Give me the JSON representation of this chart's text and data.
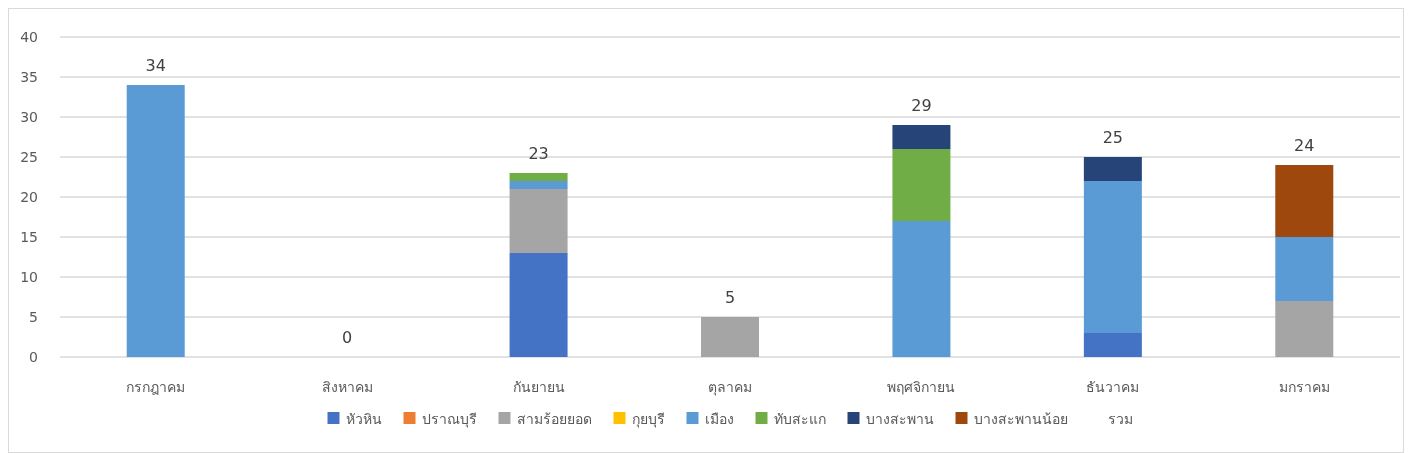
{
  "chart_data": {
    "type": "bar",
    "stacked": true,
    "categories": [
      "กรกฎาคม",
      "สิงหาคม",
      "กันยายน",
      "ตุลาคม",
      "พฤศจิกายน",
      "ธันวาคม",
      "มกราคม"
    ],
    "series": [
      {
        "name": "หัวหิน",
        "color": "#4472c4",
        "values": [
          0,
          0,
          13,
          0,
          0,
          3,
          0
        ]
      },
      {
        "name": "ปราณบุรี",
        "color": "#ed7d31",
        "values": [
          0,
          0,
          0,
          0,
          0,
          0,
          0
        ]
      },
      {
        "name": "สามร้อยยอด",
        "color": "#a5a5a5",
        "values": [
          0,
          0,
          8,
          5,
          0,
          0,
          7
        ]
      },
      {
        "name": "กุยบุรี",
        "color": "#ffc000",
        "values": [
          0,
          0,
          0,
          0,
          0,
          0,
          0
        ]
      },
      {
        "name": "เมือง",
        "color": "#5b9bd5",
        "values": [
          34,
          0,
          1,
          0,
          17,
          19,
          8
        ]
      },
      {
        "name": "ทับสะแก",
        "color": "#70ad47",
        "values": [
          0,
          0,
          1,
          0,
          9,
          0,
          0
        ]
      },
      {
        "name": "บางสะพาน",
        "color": "#264478",
        "values": [
          0,
          0,
          0,
          0,
          3,
          3,
          0
        ]
      },
      {
        "name": "บางสะพานน้อย",
        "color": "#9e480e",
        "values": [
          0,
          0,
          0,
          0,
          0,
          0,
          9
        ]
      },
      {
        "name": "รวม",
        "color": null,
        "values": [
          null,
          null,
          null,
          null,
          null,
          null,
          null
        ]
      }
    ],
    "totals": [
      "34",
      "0",
      "23",
      "5",
      "29",
      "25",
      "24"
    ],
    "ylim": [
      0,
      40
    ],
    "yticks": [
      0,
      5,
      10,
      15,
      20,
      25,
      30,
      35,
      40
    ],
    "grid": "y",
    "legend": "bottom"
  }
}
